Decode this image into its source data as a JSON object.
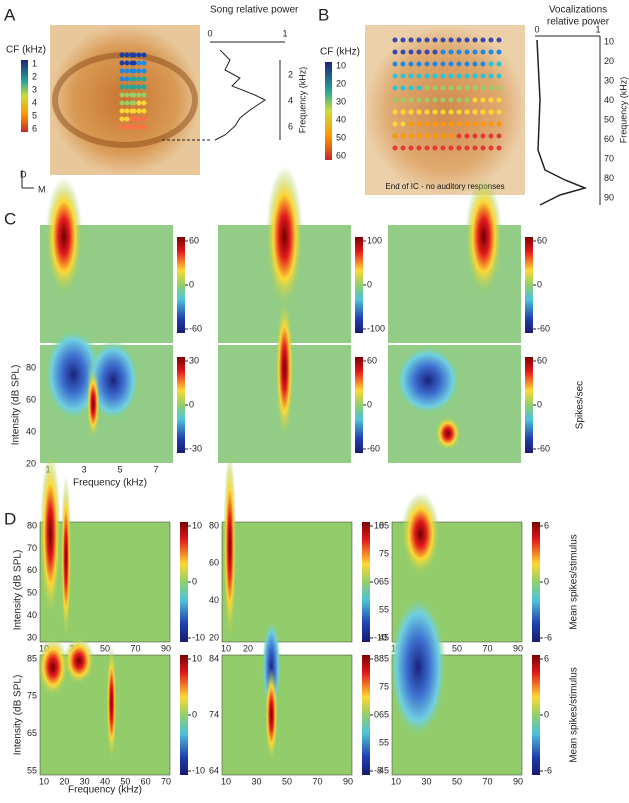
{
  "panel_labels": [
    "A",
    "B",
    "C",
    "D"
  ],
  "panel_a": {
    "cf_label": "CF (kHz)",
    "cf_ticks": [
      1,
      2,
      3,
      4,
      5,
      6
    ],
    "orientation": [
      "D",
      "M"
    ],
    "power_label": "Song relative power",
    "power_ticks": [
      0,
      1
    ],
    "freq_label": "Frequency (kHz)",
    "freq_ticks": [
      2,
      4,
      6
    ]
  },
  "panel_b": {
    "cf_label": "CF (kHz)",
    "cf_ticks": [
      10,
      20,
      30,
      40,
      50,
      60
    ],
    "annotation": "End of IC - no auditory responses",
    "power_label": [
      "Vocalizations",
      "relative power"
    ],
    "power_ticks": [
      0,
      1
    ],
    "freq_label": "Frequency (kHz)",
    "freq_ticks": [
      10,
      20,
      30,
      40,
      50,
      60,
      70,
      80,
      90
    ]
  },
  "panel_c": {
    "y_label": "Intensity (dB SPL)",
    "yticks": [
      80,
      60,
      40,
      20
    ],
    "x_label": "Frequency (kHz)",
    "xticks": [
      1,
      3,
      5,
      7
    ],
    "colorbar_label": "Spikes/sec",
    "colorbars": [
      [
        60,
        0,
        -60
      ],
      [
        100,
        0,
        -100
      ],
      [
        60,
        0,
        -60
      ],
      [
        30,
        0,
        -30
      ],
      [
        60,
        0,
        -60
      ],
      [
        60,
        0,
        -60
      ]
    ]
  },
  "panel_d": {
    "y_label": "Intensity (dB SPL)",
    "x_label": "Frequency (kHz)",
    "colorbar_label": "Mean spikes/stimulus",
    "plots": [
      {
        "yticks": [
          80,
          70,
          60,
          50,
          40,
          30
        ],
        "xticks": [
          10,
          30,
          50,
          70,
          90
        ],
        "colorbar": [
          10,
          0,
          -10
        ]
      },
      {
        "yticks": [
          80,
          60,
          40,
          20
        ],
        "xticks": [
          10,
          20
        ],
        "colorbar": [
          10,
          0,
          -10
        ]
      },
      {
        "yticks": [
          85,
          75,
          65,
          55,
          45
        ],
        "xticks": [
          10,
          30,
          50,
          70,
          90
        ],
        "colorbar": [
          6,
          0,
          -6
        ]
      },
      {
        "yticks": [
          85,
          75,
          65,
          55
        ],
        "xticks": [
          10,
          20,
          30,
          40,
          50,
          60,
          70
        ],
        "colorbar": [
          10,
          0,
          -10
        ]
      },
      {
        "yticks": [
          84,
          74,
          64
        ],
        "xticks": [
          10,
          30,
          50,
          70,
          90
        ],
        "colorbar": [
          8,
          0,
          -8
        ]
      },
      {
        "yticks": [
          85,
          75,
          65,
          55,
          45
        ],
        "xticks": [
          10,
          30,
          50,
          70,
          90
        ],
        "colorbar": [
          6,
          0,
          -6
        ]
      }
    ]
  }
}
